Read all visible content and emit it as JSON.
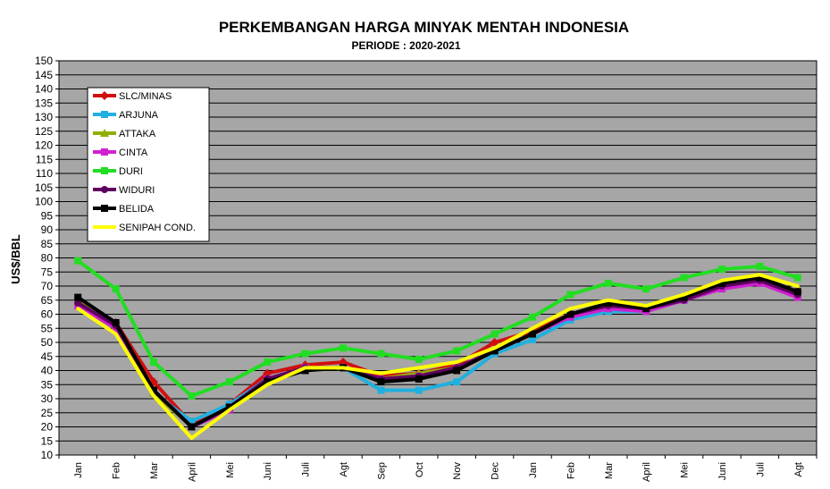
{
  "chart_data": {
    "type": "line",
    "title": "PERKEMBANGAN HARGA MINYAK MENTAH INDONESIA",
    "subtitle": "PERIODE  : 2020-2021",
    "ylabel": "US$/BBL",
    "xlabel": "",
    "ylim": [
      10,
      150
    ],
    "ystep": 5,
    "grid": true,
    "legend_position": "top-left",
    "categories": [
      "Jan",
      "Feb",
      "Mar",
      "April",
      "Mei",
      "Juni",
      "Juli",
      "Agt",
      "Sep",
      "Oct",
      "Nov",
      "Dec",
      "Jan",
      "Feb",
      "Mar",
      "April",
      "Mei",
      "Juni",
      "Juli",
      "Agt"
    ],
    "series": [
      {
        "name": "SLC/MINAS",
        "color": "#d01010",
        "marker": "diamond",
        "values": [
          65,
          57,
          36,
          21,
          28,
          39,
          42,
          43,
          38,
          39,
          42,
          50,
          54,
          60,
          63,
          62,
          66,
          71,
          73,
          68
        ]
      },
      {
        "name": "ARJUNA",
        "color": "#20b0e0",
        "marker": "square",
        "values": [
          65,
          56,
          32,
          22,
          28,
          37,
          41,
          41,
          33,
          33,
          36,
          46,
          51,
          58,
          61,
          61,
          65,
          70,
          72,
          67
        ]
      },
      {
        "name": "ATTAKA",
        "color": "#90b000",
        "marker": "triangle",
        "values": [
          65,
          56,
          32,
          20,
          27,
          36,
          41,
          41,
          37,
          39,
          41,
          47,
          53,
          60,
          63,
          62,
          66,
          70,
          72,
          67
        ]
      },
      {
        "name": "CINTA",
        "color": "#d020d0",
        "marker": "square",
        "values": [
          63,
          55,
          33,
          20,
          26,
          37,
          41,
          41,
          37,
          38,
          41,
          47,
          53,
          59,
          62,
          61,
          65,
          69,
          71,
          66
        ]
      },
      {
        "name": "DURI",
        "color": "#22dd22",
        "marker": "square",
        "values": [
          79,
          69,
          43,
          31,
          36,
          43,
          46,
          48,
          46,
          44,
          47,
          53,
          59,
          67,
          71,
          69,
          73,
          76,
          77,
          73
        ]
      },
      {
        "name": "WIDURI",
        "color": "#600060",
        "marker": "circle",
        "values": [
          64,
          56,
          33,
          20,
          27,
          37,
          41,
          41,
          37,
          38,
          41,
          47,
          53,
          60,
          63,
          62,
          65,
          70,
          72,
          67
        ]
      },
      {
        "name": "BELIDA",
        "color": "#000000",
        "marker": "square",
        "values": [
          66,
          57,
          33,
          20,
          27,
          36,
          40,
          41,
          36,
          37,
          40,
          47,
          53,
          60,
          64,
          62,
          66,
          71,
          73,
          68
        ]
      },
      {
        "name": "SENIPAH COND.",
        "color": "#ffff00",
        "marker": "none",
        "values": [
          62,
          53,
          31,
          16,
          26,
          35,
          41,
          41,
          39,
          41,
          43,
          48,
          55,
          62,
          65,
          63,
          67,
          72,
          74,
          70
        ]
      }
    ]
  }
}
